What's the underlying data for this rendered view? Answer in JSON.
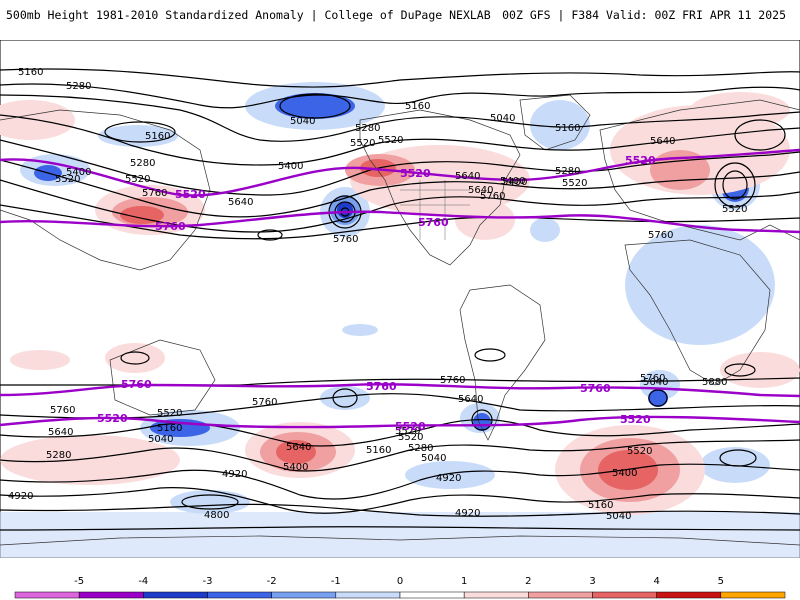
{
  "header": {
    "title_left": "500mb Height 1981-2010 Standardized Anomaly | College of DuPage NEXLAB",
    "title_right": "00Z GFS | F384 Valid: 00Z FRI APR 11 2025"
  },
  "contour_labels": {
    "nh": [
      "5160",
      "5280",
      "5160",
      "5040",
      "5280",
      "5520",
      "5160",
      "5040",
      "5160",
      "5400",
      "5520",
      "5400",
      "5280",
      "5640",
      "5520",
      "5400",
      "5280",
      "5520",
      "5640",
      "5640",
      "5760",
      "5640",
      "5760",
      "5760",
      "5520",
      "5760",
      "5400",
      "5520"
    ],
    "sh": [
      "5760",
      "5760",
      "5640",
      "5880",
      "5760",
      "5760",
      "5520",
      "5520",
      "5640",
      "5160",
      "5040",
      "5520",
      "5640",
      "5520",
      "5400",
      "5280",
      "5160",
      "5040",
      "5640",
      "5400",
      "4920",
      "5280",
      "5160",
      "5040",
      "4920",
      "4920",
      "4800",
      "4920"
    ]
  },
  "highlight_labels": {
    "nh_5520": [
      "5520",
      "5520",
      "5520"
    ],
    "nh_5760": [
      "5760",
      "5760"
    ],
    "sh_5760": [
      "5760",
      "5760",
      "5760"
    ],
    "sh_5520": [
      "5520",
      "5520",
      "5520"
    ]
  },
  "colorbar": {
    "labels": [
      "-5",
      "-4",
      "-3",
      "-2",
      "-1",
      "0",
      "1",
      "2",
      "3",
      "4",
      "5"
    ],
    "colors": [
      "#dd66dd",
      "#9a00c8",
      "#1e3cc8",
      "#3c64e6",
      "#78a0f0",
      "#c8dcfa",
      "#ffffff",
      "#fadcdc",
      "#f0a0a0",
      "#e66464",
      "#c81414",
      "#ffa500"
    ]
  }
}
